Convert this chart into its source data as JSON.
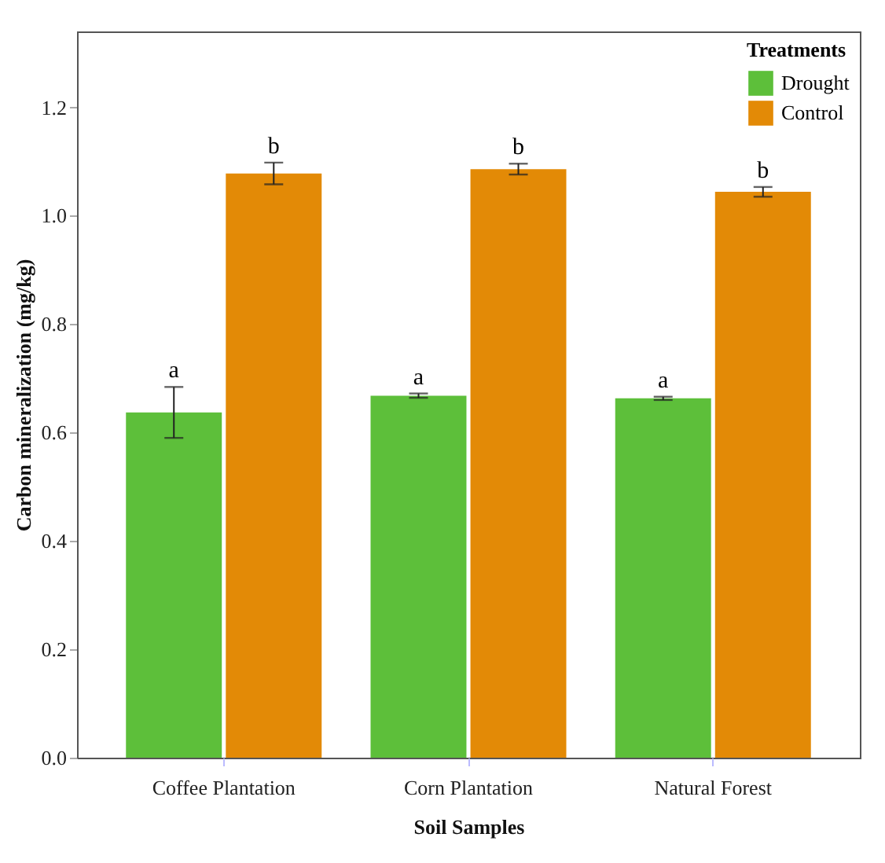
{
  "chart_data": {
    "type": "bar",
    "xlabel": "Soil Samples",
    "ylabel": "Carbon mineralization (mg/kg)",
    "legend_title": "Treatments",
    "categories": [
      "Coffee Plantation",
      "Corn Plantation",
      "Natural Forest"
    ],
    "series": [
      {
        "name": "Drought",
        "color": "#5dbf3a",
        "values": [
          0.637,
          0.668,
          0.663
        ],
        "errors": [
          0.047,
          0.004,
          0.003
        ]
      },
      {
        "name": "Control",
        "color": "#e38a06",
        "values": [
          1.078,
          1.086,
          1.044
        ],
        "errors": [
          0.02,
          0.01,
          0.009
        ]
      }
    ],
    "annotations": [
      "a",
      "b",
      "a",
      "b",
      "a",
      "b"
    ],
    "ylim": [
      0,
      1.34
    ],
    "yticks": [
      {
        "value": 0,
        "label": "0.0"
      },
      0.2,
      0.4,
      0.6,
      0.8,
      {
        "value": 1,
        "label": "1.0"
      },
      1.2
    ],
    "grid": false,
    "legend": "top right"
  }
}
